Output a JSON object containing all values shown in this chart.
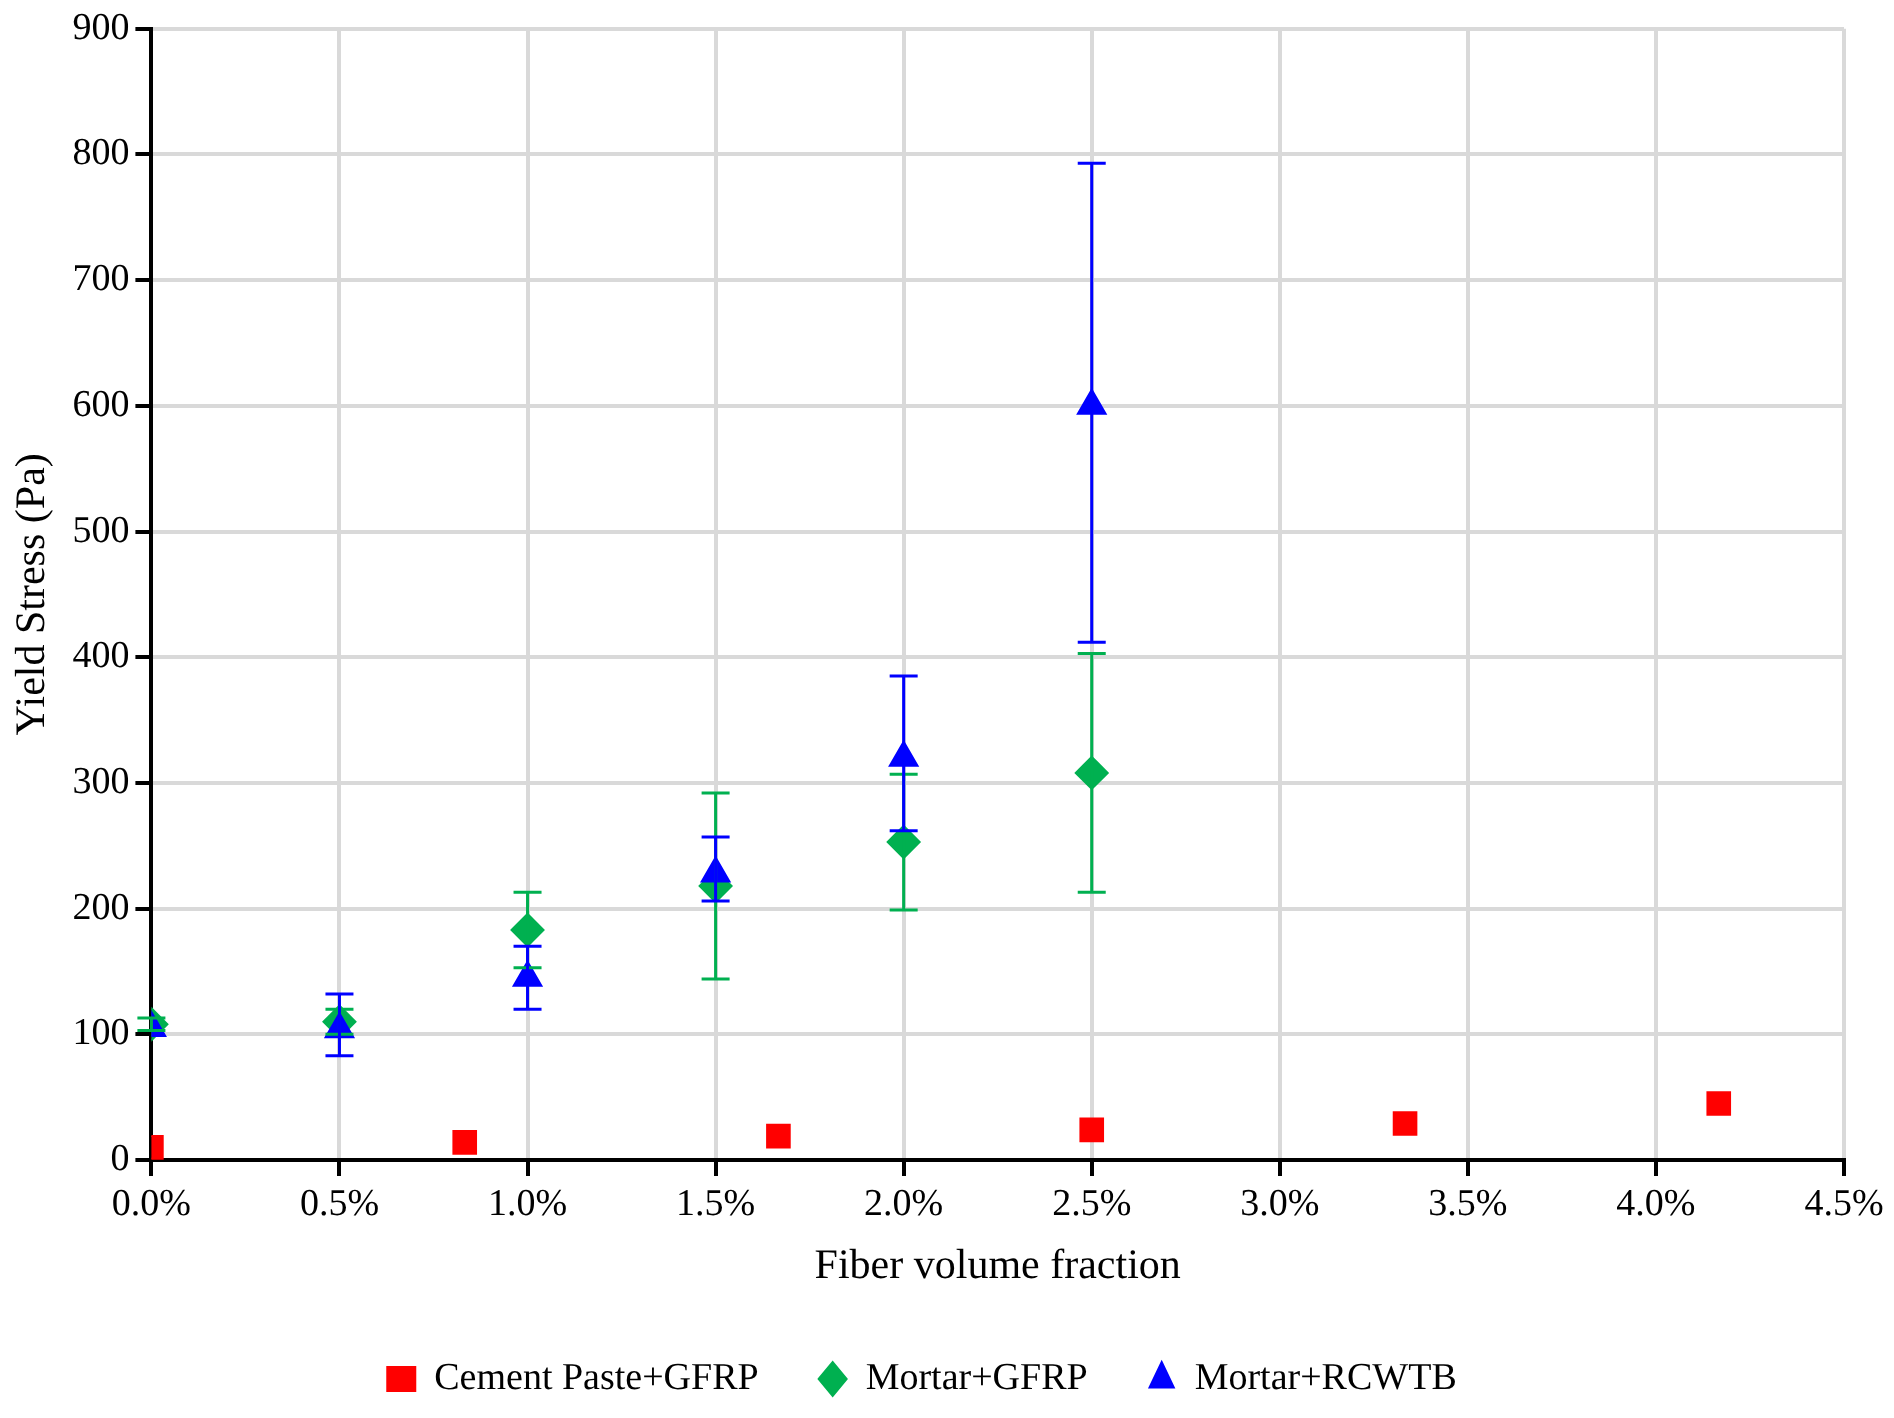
{
  "chart_data": {
    "type": "scatter",
    "xlabel": "Fiber volume fraction",
    "ylabel": "Yield Stress (Pa)",
    "xlim": [
      0,
      4.5
    ],
    "xticks": [
      {
        "value": 0,
        "label": "0.0%"
      },
      {
        "value": 0.5,
        "label": "0.5%"
      },
      {
        "value": 1,
        "label": "1.0%"
      },
      {
        "value": 1.5,
        "label": "1.5%"
      },
      {
        "value": 2,
        "label": "2.0%"
      },
      {
        "value": 2.5,
        "label": "2.5%"
      },
      {
        "value": 3,
        "label": "3.0%"
      },
      {
        "value": 3.5,
        "label": "3.5%"
      },
      {
        "value": 4,
        "label": "4.0%"
      },
      {
        "value": 4.5,
        "label": "4.5%"
      }
    ],
    "ylim": [
      0,
      900
    ],
    "yticks": [
      0,
      100,
      200,
      300,
      400,
      500,
      600,
      700,
      800,
      900
    ],
    "grid": true,
    "legend": "bottom",
    "series": [
      {
        "name": "Cement Paste+GFRP",
        "color": "#ff0000",
        "marker": "square",
        "x": [
          0,
          0.833,
          1.667,
          2.5,
          3.333,
          4.167
        ],
        "values": [
          10,
          14,
          19,
          24,
          29,
          45
        ]
      },
      {
        "name": "Mortar+GFRP",
        "color": "#00b050",
        "marker": "diamond",
        "x": [
          0,
          0.5,
          1,
          1.5,
          2,
          2.5
        ],
        "values": [
          108,
          110,
          183,
          218,
          253,
          308
        ],
        "errors": [
          5,
          10,
          30,
          74,
          54,
          95
        ]
      },
      {
        "name": "Mortar+RCWTB",
        "color": "#0000ff",
        "marker": "triangle",
        "x": [
          0,
          0.5,
          1,
          1.5,
          2,
          2.5
        ],
        "values": [
          105,
          104,
          145,
          228,
          320,
          600
        ],
        "errors": [
          null,
          [
            83,
            132
          ],
          [
            120,
            170
          ],
          [
            206,
            257
          ],
          [
            262,
            385
          ],
          [
            412,
            793
          ]
        ]
      }
    ]
  }
}
